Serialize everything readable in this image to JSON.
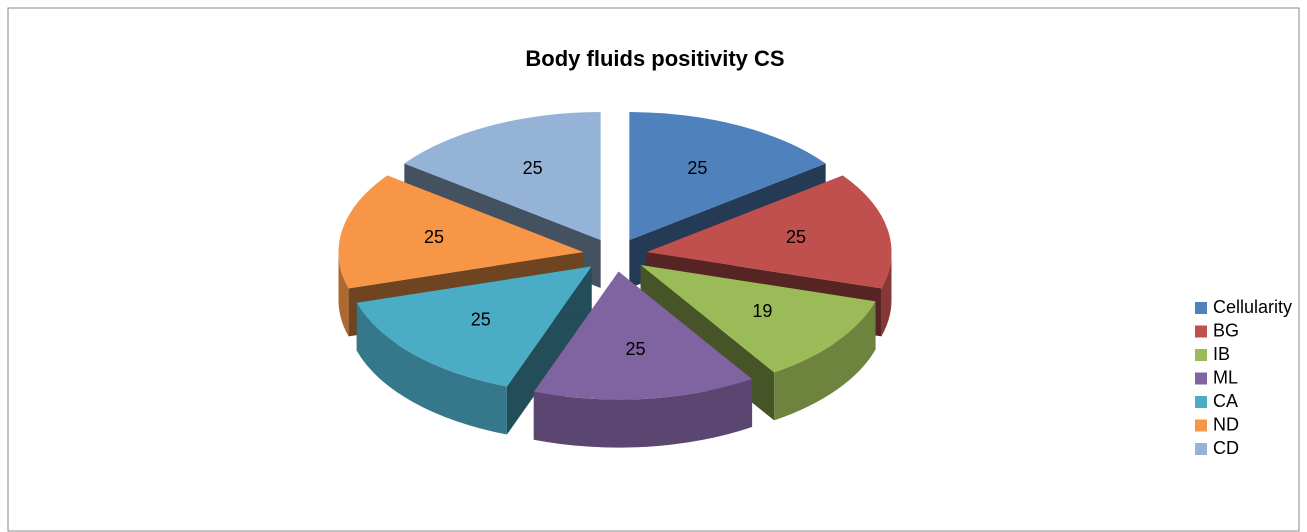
{
  "chart_data": {
    "type": "pie",
    "title": "Body fluids positivity CS",
    "categories": [
      "Cellularity",
      "BG",
      "IB",
      "ML",
      "CA",
      "ND",
      "CD"
    ],
    "values": [
      25,
      25,
      19,
      25,
      25,
      25,
      25
    ],
    "colors": [
      "#4f81bd",
      "#c0504d",
      "#9bbb59",
      "#8064a2",
      "#4bacc6",
      "#f79646",
      "#95b3d7"
    ],
    "legend": "right"
  }
}
